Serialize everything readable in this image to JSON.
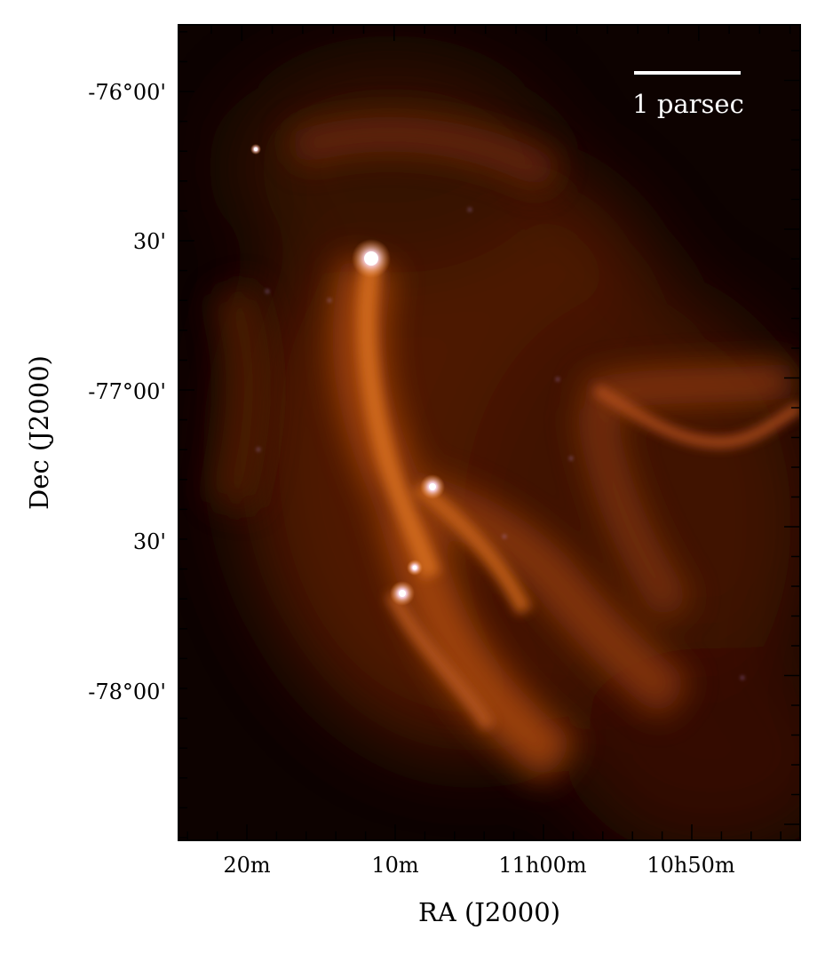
{
  "figure": {
    "xlabel": "RA (J2000)",
    "ylabel": "Dec (J2000)",
    "x_ticks": [
      "20m",
      "10m",
      "11h00m",
      "10h50m"
    ],
    "y_ticks": [
      "-76°00'",
      "30'",
      "-77°00'",
      "30'",
      "-78°00'"
    ],
    "scalebar_label": "1 parsec",
    "colors": {
      "background": "#0d0200",
      "emission": "#d26a1e",
      "highlight": "#ffe8f0",
      "axis": "#000000"
    }
  }
}
